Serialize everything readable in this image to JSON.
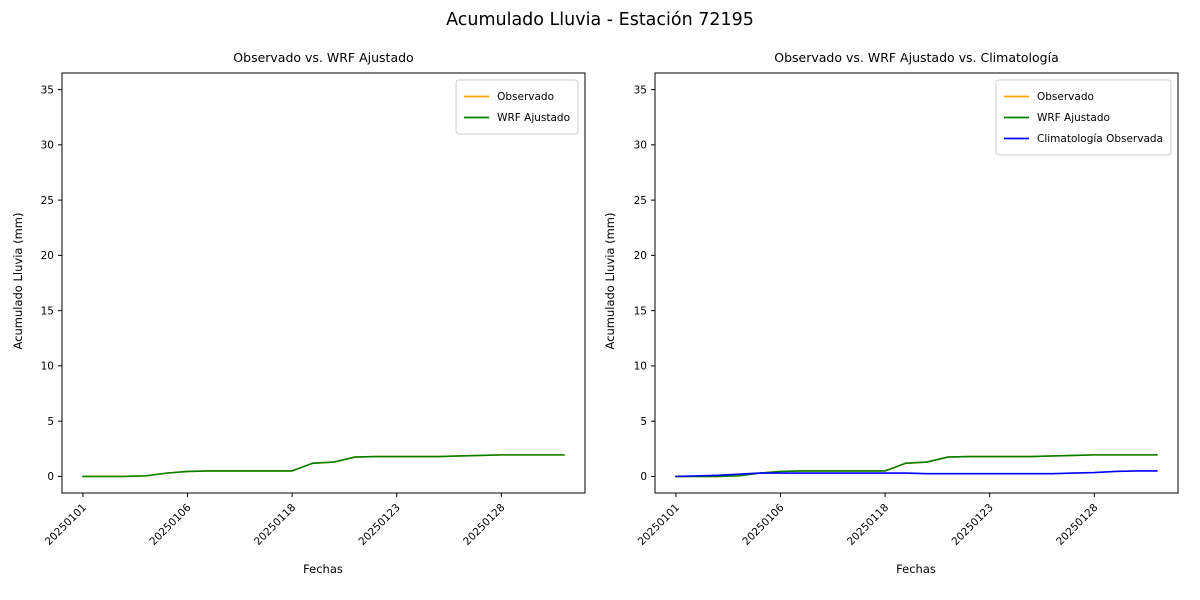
{
  "figure": {
    "title": "Acumulado Lluvia - Estación 72195",
    "background": "#ffffff"
  },
  "chart_data": [
    {
      "type": "line",
      "title": "Observado vs. WRF Ajustado",
      "xlabel": "Fechas",
      "ylabel": "Acumulado Lluvia (mm)",
      "x_tick_positions": [
        0,
        5,
        10,
        15,
        20
      ],
      "x_tick_labels": [
        "20250101",
        "20250106",
        "20250118",
        "20250123",
        "20250128"
      ],
      "y_ticks": [
        0,
        5,
        10,
        15,
        20,
        25,
        30,
        35
      ],
      "xlim": [
        -1.0,
        24.0
      ],
      "ylim": [
        -1.5,
        36.5
      ],
      "grid": false,
      "legend_position": "upper right",
      "series": [
        {
          "name": "Observado",
          "color": "#ffa500",
          "values": [
            0,
            0,
            0,
            0.05,
            0.3,
            0.45,
            0.5,
            0.5,
            0.5,
            0.5,
            0.5,
            1.2,
            1.3,
            1.75,
            1.8,
            1.8,
            1.8,
            1.8,
            1.85,
            1.9,
            1.95,
            1.95,
            1.95,
            1.95
          ]
        },
        {
          "name": "WRF Ajustado",
          "color": "#008000",
          "values": [
            0,
            0,
            0,
            0.05,
            0.3,
            0.45,
            0.5,
            0.5,
            0.5,
            0.5,
            0.5,
            1.2,
            1.3,
            1.75,
            1.8,
            1.8,
            1.8,
            1.8,
            1.85,
            1.9,
            1.95,
            1.95,
            1.95,
            1.95
          ]
        }
      ]
    },
    {
      "type": "line",
      "title": "Observado vs. WRF Ajustado vs. Climatología",
      "xlabel": "Fechas",
      "ylabel": "Acumulado Lluvia (mm)",
      "x_tick_positions": [
        0,
        5,
        10,
        15,
        20
      ],
      "x_tick_labels": [
        "20250101",
        "20250106",
        "20250118",
        "20250123",
        "20250128"
      ],
      "y_ticks": [
        0,
        5,
        10,
        15,
        20,
        25,
        30,
        35
      ],
      "xlim": [
        -1.0,
        24.0
      ],
      "ylim": [
        -1.5,
        36.5
      ],
      "grid": false,
      "legend_position": "upper right",
      "series": [
        {
          "name": "Observado",
          "color": "#ffa500",
          "values": [
            0,
            0,
            0,
            0.05,
            0.3,
            0.45,
            0.5,
            0.5,
            0.5,
            0.5,
            0.5,
            1.2,
            1.3,
            1.75,
            1.8,
            1.8,
            1.8,
            1.8,
            1.85,
            1.9,
            1.95,
            1.95,
            1.95,
            1.95
          ]
        },
        {
          "name": "WRF Ajustado",
          "color": "#008000",
          "values": [
            0,
            0,
            0,
            0.05,
            0.3,
            0.45,
            0.5,
            0.5,
            0.5,
            0.5,
            0.5,
            1.2,
            1.3,
            1.75,
            1.8,
            1.8,
            1.8,
            1.8,
            1.85,
            1.9,
            1.95,
            1.95,
            1.95,
            1.95
          ]
        },
        {
          "name": "Climatología Observada",
          "color": "#0000ff",
          "values": [
            0,
            0.05,
            0.1,
            0.2,
            0.3,
            0.3,
            0.3,
            0.3,
            0.3,
            0.3,
            0.3,
            0.3,
            0.25,
            0.25,
            0.25,
            0.25,
            0.25,
            0.25,
            0.25,
            0.3,
            0.35,
            0.45,
            0.5,
            0.5
          ]
        }
      ]
    }
  ]
}
